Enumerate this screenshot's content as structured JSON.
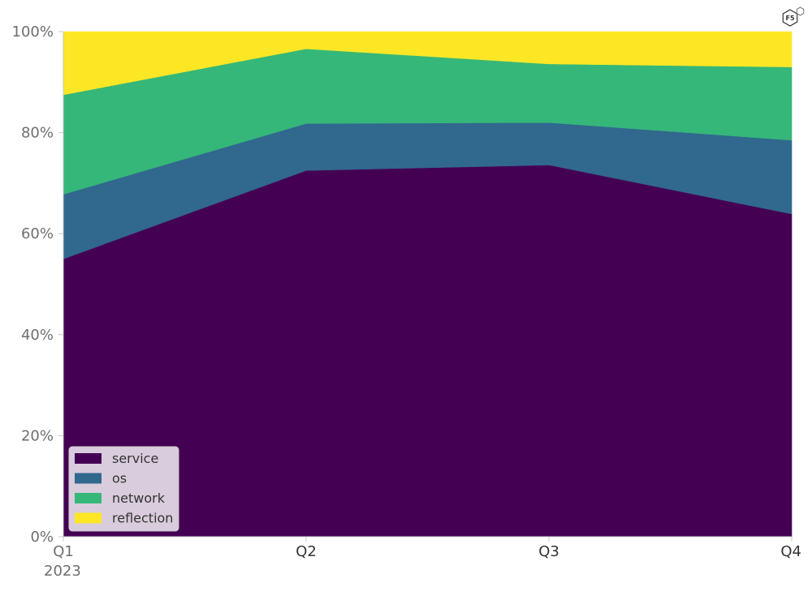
{
  "chart_data": {
    "type": "area",
    "stacked": true,
    "normalized": true,
    "categories": [
      "Q1",
      "Q2",
      "Q3",
      "Q4"
    ],
    "x_sublabel": "2023",
    "ylim": [
      0,
      100
    ],
    "y_ticks": [
      "0%",
      "20%",
      "40%",
      "60%",
      "80%",
      "100%"
    ],
    "grid": false,
    "legend_position": "bottom-left",
    "series": [
      {
        "name": "service",
        "color": "#440154",
        "values": [
          55.0,
          72.5,
          73.6,
          63.9
        ]
      },
      {
        "name": "os",
        "color": "#31688e",
        "values": [
          12.8,
          9.3,
          8.4,
          14.6
        ]
      },
      {
        "name": "network",
        "color": "#35b779",
        "values": [
          19.7,
          14.8,
          11.6,
          14.5
        ]
      },
      {
        "name": "reflection",
        "color": "#fde725",
        "values": [
          12.5,
          3.4,
          6.4,
          7.0
        ]
      }
    ]
  },
  "logo": {
    "icon": "f5-hexagon-logo",
    "text": "F5"
  }
}
